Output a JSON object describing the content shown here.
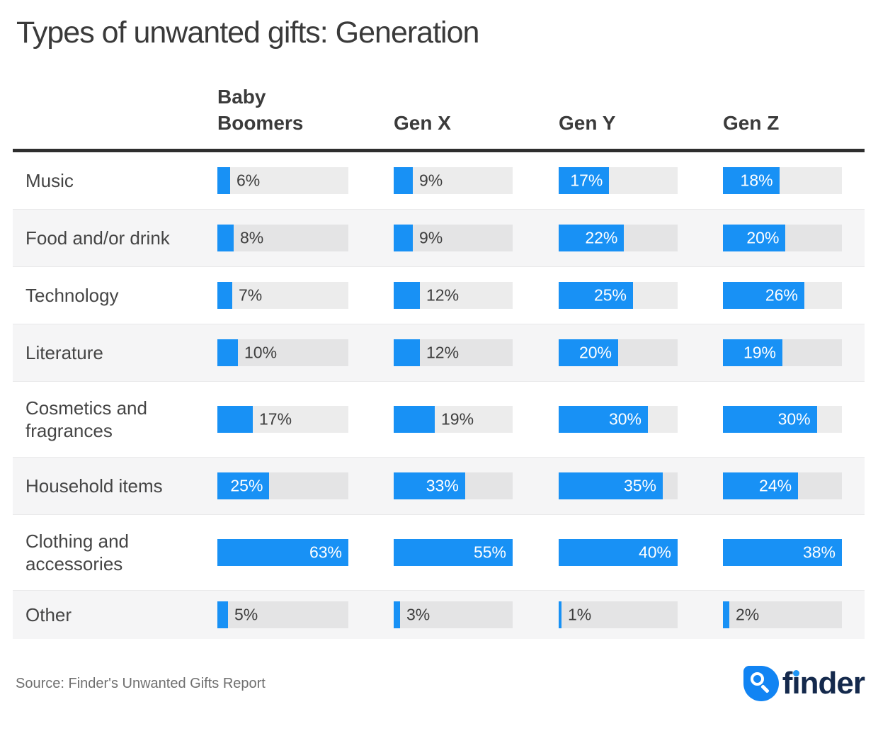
{
  "title": "Types of unwanted gifts: Generation",
  "footer": {
    "source": "Source: Finder's Unwanted Gifts Report",
    "logo_text": "finder"
  },
  "colors": {
    "bar_blue": "#1891F5",
    "track_light_row": "#ECECEC",
    "track_striped_row": "#E4E4E5",
    "row_stripe": "#F5F5F6",
    "header_rule": "#2E2E2E",
    "heading_text": "#3A3A3A",
    "value_text_outside": "#3E3E3E",
    "value_text_inside": "#FFFFFF",
    "source_gray": "#6F6F6F",
    "logo_navy": "#14294C",
    "logo_droplet_blue": "#1184F3"
  },
  "chart_data": {
    "type": "bar",
    "orientation": "horizontal",
    "title": "Types of unwanted gifts: Generation",
    "categories": [
      "Music",
      "Food and/or drink",
      "Technology",
      "Literature",
      "Cosmetics and fragrances",
      "Household items",
      "Clothing and accessories",
      "Other"
    ],
    "series": [
      {
        "name": "Baby Boomers",
        "values": [
          6,
          8,
          7,
          10,
          17,
          25,
          63,
          5
        ]
      },
      {
        "name": "Gen X",
        "values": [
          9,
          9,
          12,
          12,
          19,
          33,
          55,
          3
        ]
      },
      {
        "name": "Gen Y",
        "values": [
          17,
          22,
          25,
          20,
          30,
          35,
          40,
          1
        ]
      },
      {
        "name": "Gen Z",
        "values": [
          18,
          20,
          26,
          19,
          30,
          24,
          38,
          2
        ]
      }
    ],
    "value_unit": "%",
    "value_labels": true,
    "axis_ticks": "none",
    "grid": false,
    "legend_position": "column headers across top",
    "scaling_note": "bars in each generation column are scaled so that the column maximum (its Clothing and accessories value) fills the full track width",
    "source": "Source: Finder's Unwanted Gifts Report"
  }
}
